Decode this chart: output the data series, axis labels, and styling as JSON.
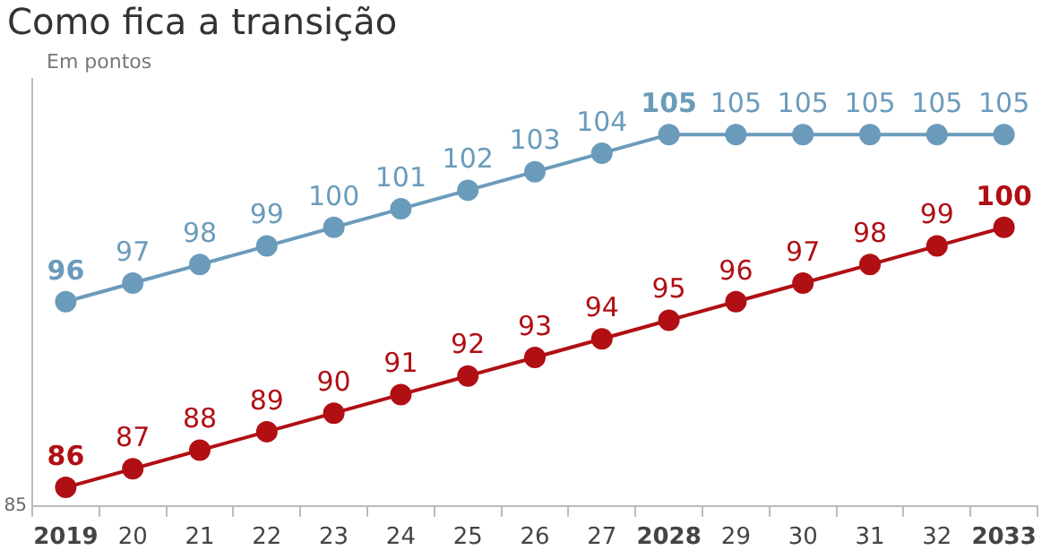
{
  "chart_data": {
    "type": "line",
    "title": "Como fica a transição",
    "ylabel": "Em pontos",
    "categories": [
      "2019",
      "20",
      "21",
      "22",
      "23",
      "24",
      "25",
      "26",
      "27",
      "2028",
      "29",
      "30",
      "31",
      "32",
      "2033"
    ],
    "series": [
      {
        "color": "#6b9bbb",
        "values": [
          96,
          97,
          98,
          99,
          100,
          101,
          102,
          103,
          104,
          105,
          105,
          105,
          105,
          105,
          105
        ]
      },
      {
        "color": "#b00f14",
        "values": [
          86,
          87,
          88,
          89,
          90,
          91,
          92,
          93,
          94,
          95,
          96,
          97,
          98,
          99,
          100
        ]
      }
    ],
    "ylim": [
      85,
      108
    ],
    "annotations": [
      "85"
    ],
    "grid": false,
    "legend": false,
    "marker": "circle",
    "line_style": "solid",
    "data_labels": true
  }
}
